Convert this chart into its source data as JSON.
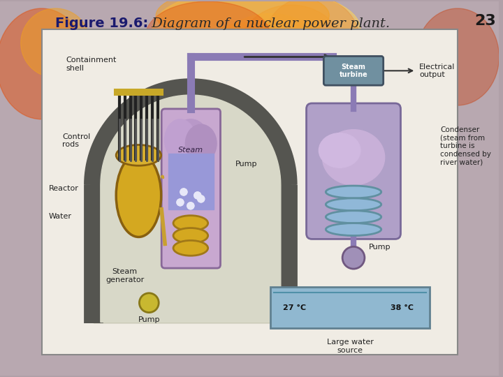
{
  "title_bold": "Figure 19.6:",
  "title_normal": " Diagram of a nuclear power plant.",
  "slide_num": "23",
  "bg_color": "#b0a0a8",
  "panel_bg": "#e8e4e0",
  "diagram_bg": "#d8d4c8",
  "title_bold_color": "#1a1a6e",
  "title_normal_color": "#2a2a2a",
  "slide_num_color": "#1a1a1a",
  "containment_shell_color": "#555555",
  "containment_fill": "#c8c8b8",
  "reactor_color": "#d4a820",
  "steam_gen_color": "#c8a030",
  "pipe_color": "#8b7bb5",
  "steam_turbine_color": "#7090a0",
  "condenser_color": "#b0a0c8",
  "pump_color": "#a090b8",
  "water_color": "#90b8d0",
  "water_bg_color": "#b0d0e0"
}
